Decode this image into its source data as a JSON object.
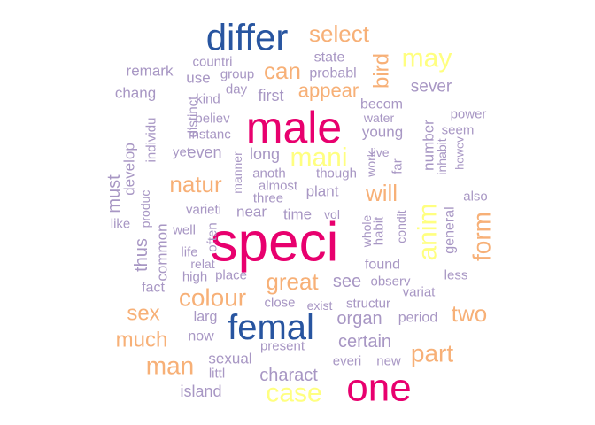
{
  "palette": {
    "magenta": "#e8006e",
    "navy": "#2855a0",
    "orange": "#f7b077",
    "yellow": "#ffff80",
    "lavender": "#a897c4"
  },
  "words": [
    {
      "text": "speci",
      "color": "magenta"
    },
    {
      "text": "male",
      "color": "magenta"
    },
    {
      "text": "one",
      "color": "magenta"
    },
    {
      "text": "femal",
      "color": "navy"
    },
    {
      "text": "differ",
      "color": "navy"
    },
    {
      "text": "mani",
      "color": "yellow"
    },
    {
      "text": "may",
      "color": "yellow"
    },
    {
      "text": "case",
      "color": "yellow"
    },
    {
      "text": "anim",
      "color": "yellow"
    },
    {
      "text": "select",
      "color": "orange"
    },
    {
      "text": "can",
      "color": "orange"
    },
    {
      "text": "appear",
      "color": "orange"
    },
    {
      "text": "bird",
      "color": "orange"
    },
    {
      "text": "natur",
      "color": "orange"
    },
    {
      "text": "will",
      "color": "orange"
    },
    {
      "text": "form",
      "color": "orange"
    },
    {
      "text": "great",
      "color": "orange"
    },
    {
      "text": "colour",
      "color": "orange"
    },
    {
      "text": "sex",
      "color": "orange"
    },
    {
      "text": "two",
      "color": "orange"
    },
    {
      "text": "much",
      "color": "orange"
    },
    {
      "text": "man",
      "color": "orange"
    },
    {
      "text": "part",
      "color": "orange"
    },
    {
      "text": "state",
      "color": "lavender"
    },
    {
      "text": "countri",
      "color": "lavender"
    },
    {
      "text": "probabl",
      "color": "lavender"
    },
    {
      "text": "remark",
      "color": "lavender"
    },
    {
      "text": "group",
      "color": "lavender"
    },
    {
      "text": "use",
      "color": "lavender"
    },
    {
      "text": "sever",
      "color": "lavender"
    },
    {
      "text": "chang",
      "color": "lavender"
    },
    {
      "text": "kind",
      "color": "lavender"
    },
    {
      "text": "day",
      "color": "lavender"
    },
    {
      "text": "first",
      "color": "lavender"
    },
    {
      "text": "becom",
      "color": "lavender"
    },
    {
      "text": "power",
      "color": "lavender"
    },
    {
      "text": "believ",
      "color": "lavender"
    },
    {
      "text": "water",
      "color": "lavender"
    },
    {
      "text": "individu",
      "color": "lavender"
    },
    {
      "text": "distinct",
      "color": "lavender"
    },
    {
      "text": "number",
      "color": "lavender"
    },
    {
      "text": "seem",
      "color": "lavender"
    },
    {
      "text": "instanc",
      "color": "lavender"
    },
    {
      "text": "young",
      "color": "lavender"
    },
    {
      "text": "inhabit",
      "color": "lavender"
    },
    {
      "text": "howev",
      "color": "lavender"
    },
    {
      "text": "yet",
      "color": "lavender"
    },
    {
      "text": "even",
      "color": "lavender"
    },
    {
      "text": "long",
      "color": "lavender"
    },
    {
      "text": "live",
      "color": "lavender"
    },
    {
      "text": "develop",
      "color": "lavender"
    },
    {
      "text": "manner",
      "color": "lavender"
    },
    {
      "text": "work",
      "color": "lavender"
    },
    {
      "text": "far",
      "color": "lavender"
    },
    {
      "text": "anoth",
      "color": "lavender"
    },
    {
      "text": "though",
      "color": "lavender"
    },
    {
      "text": "must",
      "color": "lavender"
    },
    {
      "text": "almost",
      "color": "lavender"
    },
    {
      "text": "produc",
      "color": "lavender"
    },
    {
      "text": "three",
      "color": "lavender"
    },
    {
      "text": "plant",
      "color": "lavender"
    },
    {
      "text": "also",
      "color": "lavender"
    },
    {
      "text": "varieti",
      "color": "lavender"
    },
    {
      "text": "near",
      "color": "lavender"
    },
    {
      "text": "time",
      "color": "lavender"
    },
    {
      "text": "vol",
      "color": "lavender"
    },
    {
      "text": "general",
      "color": "lavender"
    },
    {
      "text": "like",
      "color": "lavender"
    },
    {
      "text": "common",
      "color": "lavender"
    },
    {
      "text": "well",
      "color": "lavender"
    },
    {
      "text": "often",
      "color": "lavender"
    },
    {
      "text": "whole",
      "color": "lavender"
    },
    {
      "text": "habit",
      "color": "lavender"
    },
    {
      "text": "condit",
      "color": "lavender"
    },
    {
      "text": "thus",
      "color": "lavender"
    },
    {
      "text": "life",
      "color": "lavender"
    },
    {
      "text": "relat",
      "color": "lavender"
    },
    {
      "text": "found",
      "color": "lavender"
    },
    {
      "text": "less",
      "color": "lavender"
    },
    {
      "text": "high",
      "color": "lavender"
    },
    {
      "text": "place",
      "color": "lavender"
    },
    {
      "text": "see",
      "color": "lavender"
    },
    {
      "text": "observ",
      "color": "lavender"
    },
    {
      "text": "fact",
      "color": "lavender"
    },
    {
      "text": "variat",
      "color": "lavender"
    },
    {
      "text": "close",
      "color": "lavender"
    },
    {
      "text": "exist",
      "color": "lavender"
    },
    {
      "text": "structur",
      "color": "lavender"
    },
    {
      "text": "larg",
      "color": "lavender"
    },
    {
      "text": "organ",
      "color": "lavender"
    },
    {
      "text": "period",
      "color": "lavender"
    },
    {
      "text": "now",
      "color": "lavender"
    },
    {
      "text": "present",
      "color": "lavender"
    },
    {
      "text": "certain",
      "color": "lavender"
    },
    {
      "text": "sexual",
      "color": "lavender"
    },
    {
      "text": "everi",
      "color": "lavender"
    },
    {
      "text": "new",
      "color": "lavender"
    },
    {
      "text": "littl",
      "color": "lavender"
    },
    {
      "text": "charact",
      "color": "lavender"
    },
    {
      "text": "island",
      "color": "lavender"
    }
  ]
}
